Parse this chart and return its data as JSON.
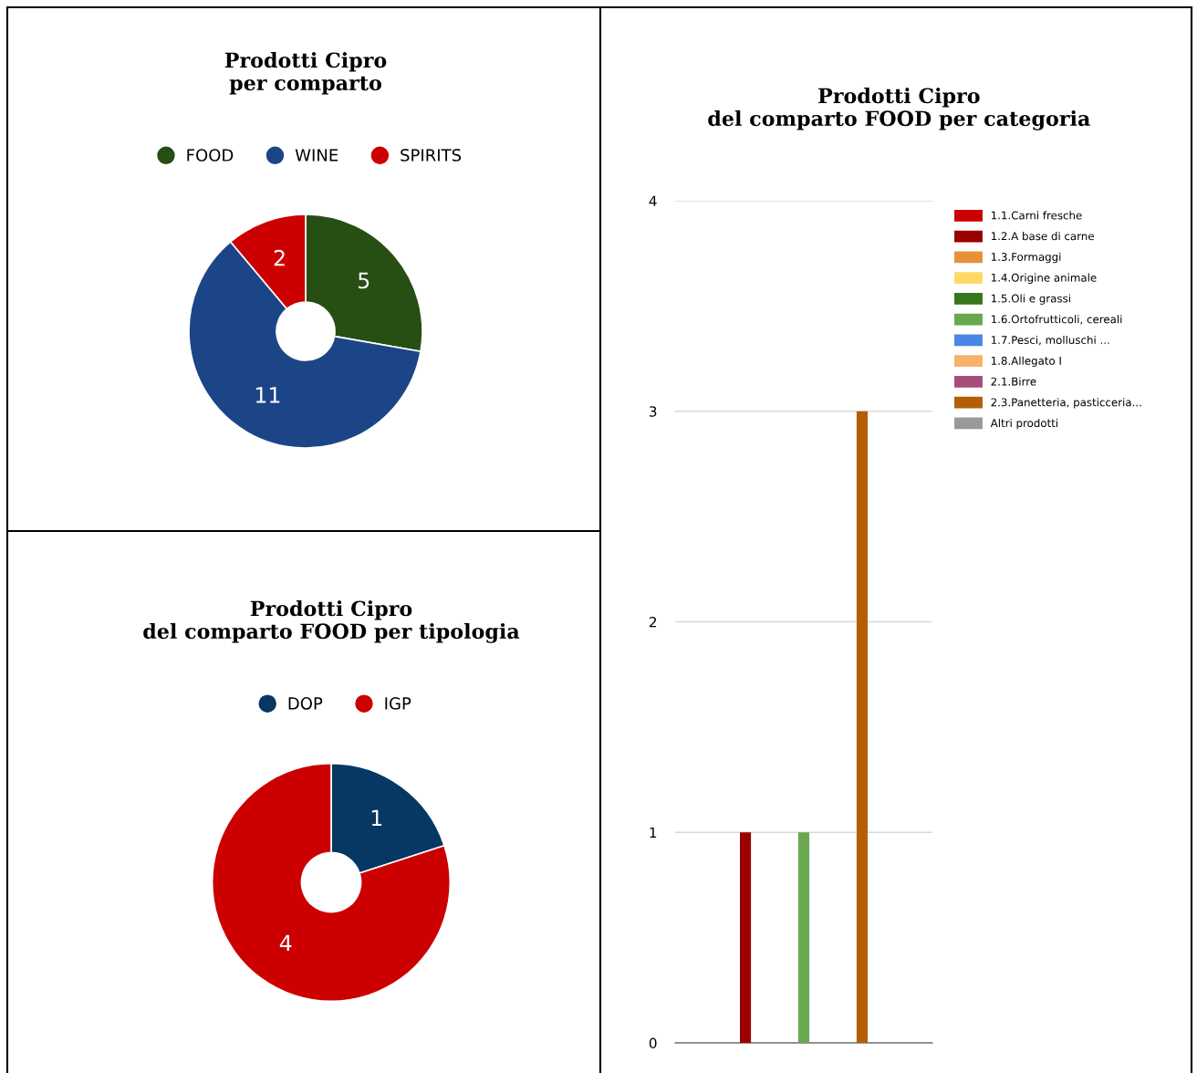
{
  "chart_data": [
    {
      "type": "donut",
      "title": "Prodotti Cipro\nper comparto",
      "categories": [
        "FOOD",
        "WINE",
        "SPIRITS"
      ],
      "values": [
        5,
        11,
        2
      ],
      "colors": [
        "#274e13",
        "#1c4587",
        "#cc0000"
      ],
      "data_labels": true,
      "legend": "top"
    },
    {
      "type": "donut",
      "title": "Prodotti Cipro\ndel comparto FOOD per tipologia",
      "categories": [
        "DOP",
        "IGP"
      ],
      "values": [
        1,
        4
      ],
      "colors": [
        "#073763",
        "#cc0000"
      ],
      "data_labels": true,
      "legend": "top"
    },
    {
      "type": "bar",
      "title": "Prodotti Cipro\ndel comparto FOOD per categoria",
      "categories": [
        null
      ],
      "ylim": [
        0,
        4
      ],
      "yticks": [
        0,
        1,
        2,
        3,
        4
      ],
      "grid": "y",
      "legend": "right",
      "tick_labels": "y",
      "series": [
        {
          "name": "1.1.Carni fresche",
          "color": "#cc0000",
          "values": [
            0
          ]
        },
        {
          "name": "1.2.A base di carne",
          "color": "#990000",
          "values": [
            1
          ]
        },
        {
          "name": "1.3.Formaggi",
          "color": "#e69138",
          "values": [
            0
          ]
        },
        {
          "name": "1.4.Origine animale",
          "color": "#ffd966",
          "values": [
            0
          ]
        },
        {
          "name": "1.5.Oli e grassi",
          "color": "#38761d",
          "values": [
            0
          ]
        },
        {
          "name": "1.6.Ortofrutticoli, cereali",
          "color": "#6aa84f",
          "values": [
            1
          ]
        },
        {
          "name": "1.7.Pesci, molluschi ...",
          "color": "#4a86e8",
          "values": [
            0
          ]
        },
        {
          "name": "1.8.Allegato I",
          "color": "#f6b26b",
          "values": [
            0
          ]
        },
        {
          "name": "2.1.Birre",
          "color": "#a64d79",
          "values": [
            0
          ]
        },
        {
          "name": "2.3.Panetteria, pasticceria...",
          "color": "#b45f06",
          "values": [
            3
          ]
        },
        {
          "name": "Altri prodotti",
          "color": "#999999",
          "values": [
            0
          ]
        }
      ]
    }
  ]
}
